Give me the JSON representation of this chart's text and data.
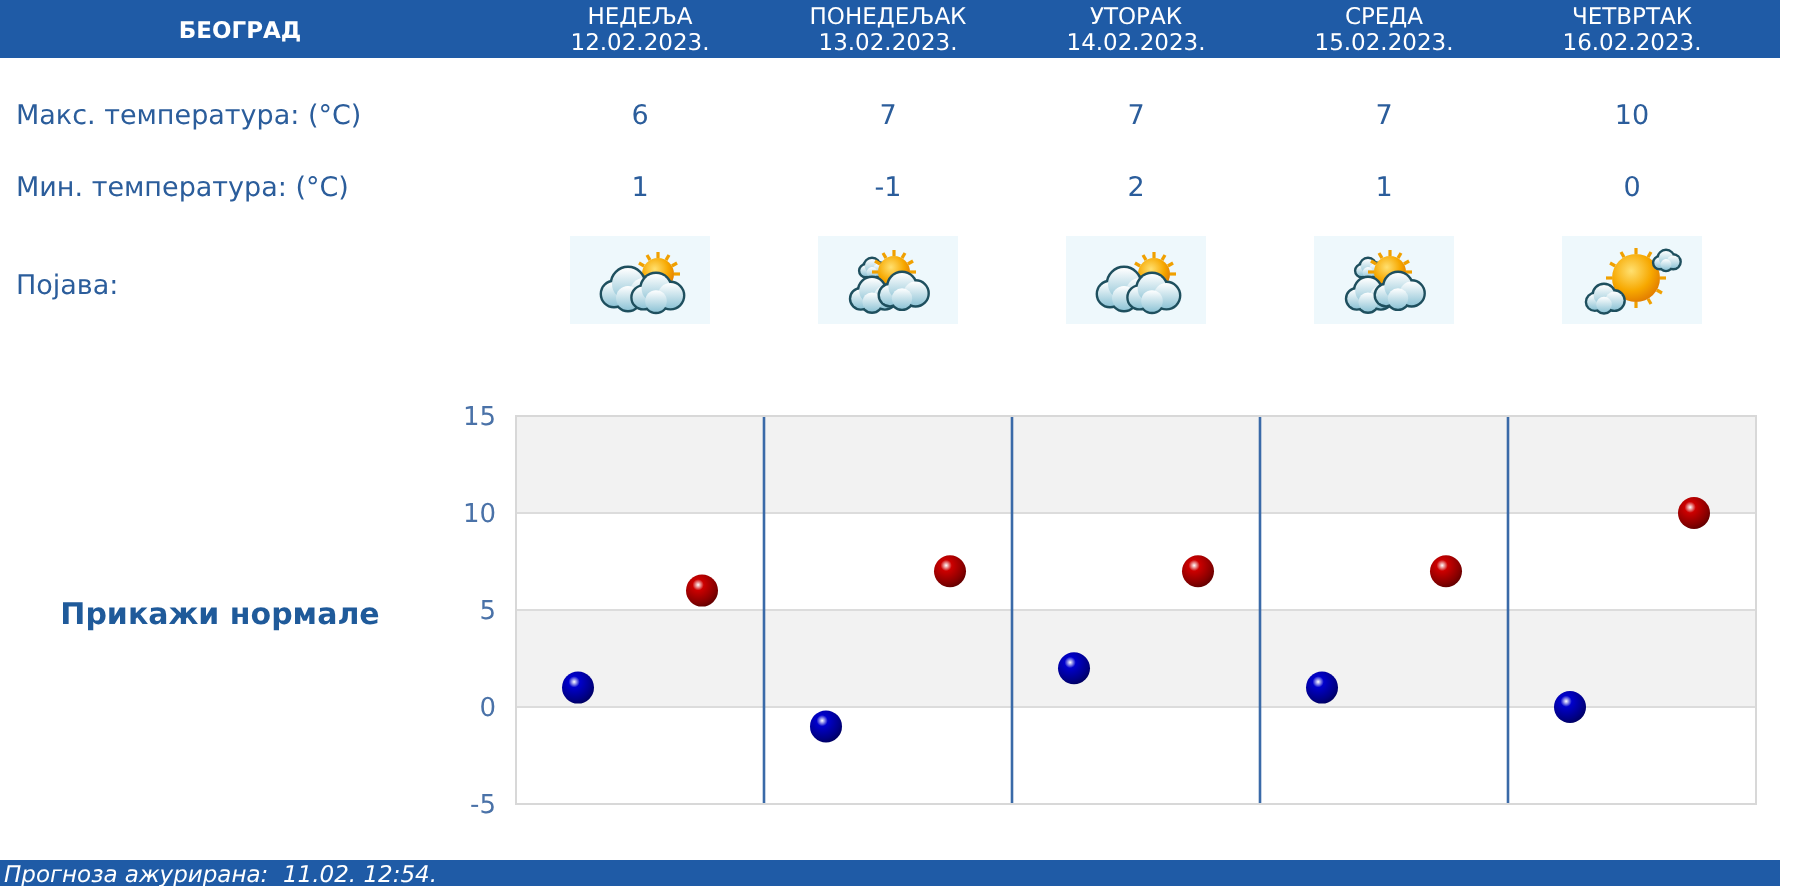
{
  "chart_data": {
    "type": "scatter",
    "title": "БЕОГРАД",
    "categories": [
      null,
      null,
      null,
      null,
      null
    ],
    "series": [
      {
        "color": "#cc0000",
        "values": [
          6,
          7,
          7,
          7,
          10
        ]
      },
      {
        "color": "#0000cc",
        "values": [
          1,
          -1,
          2,
          1,
          0
        ]
      }
    ],
    "ylim": [
      -5,
      15
    ],
    "yticks": [
      -5,
      0,
      5,
      10,
      15
    ],
    "grid": true,
    "marker": "circle",
    "data_labels": true,
    "bands": [
      {
        "axis": "y",
        "from": 10,
        "to": 15,
        "color": "#f2f2f2"
      },
      {
        "axis": "y",
        "from": 0,
        "to": 5,
        "color": "#f2f2f2"
      }
    ],
    "annotations": [
      "НЕДЕЉА 12.02.2023.",
      "ПОНЕДЕЉАК 13.02.2023.",
      "УТОРАК 14.02.2023.",
      "СРЕДА 15.02.2023.",
      "ЧЕТВРТАК 16.02.2023.",
      "Макс. температура: (°C)",
      "Мин. температура: (°C)",
      "Појава:",
      "Прикажи нормале",
      "Прогноза ажурирана:  11.02. 12:54."
    ]
  }
}
